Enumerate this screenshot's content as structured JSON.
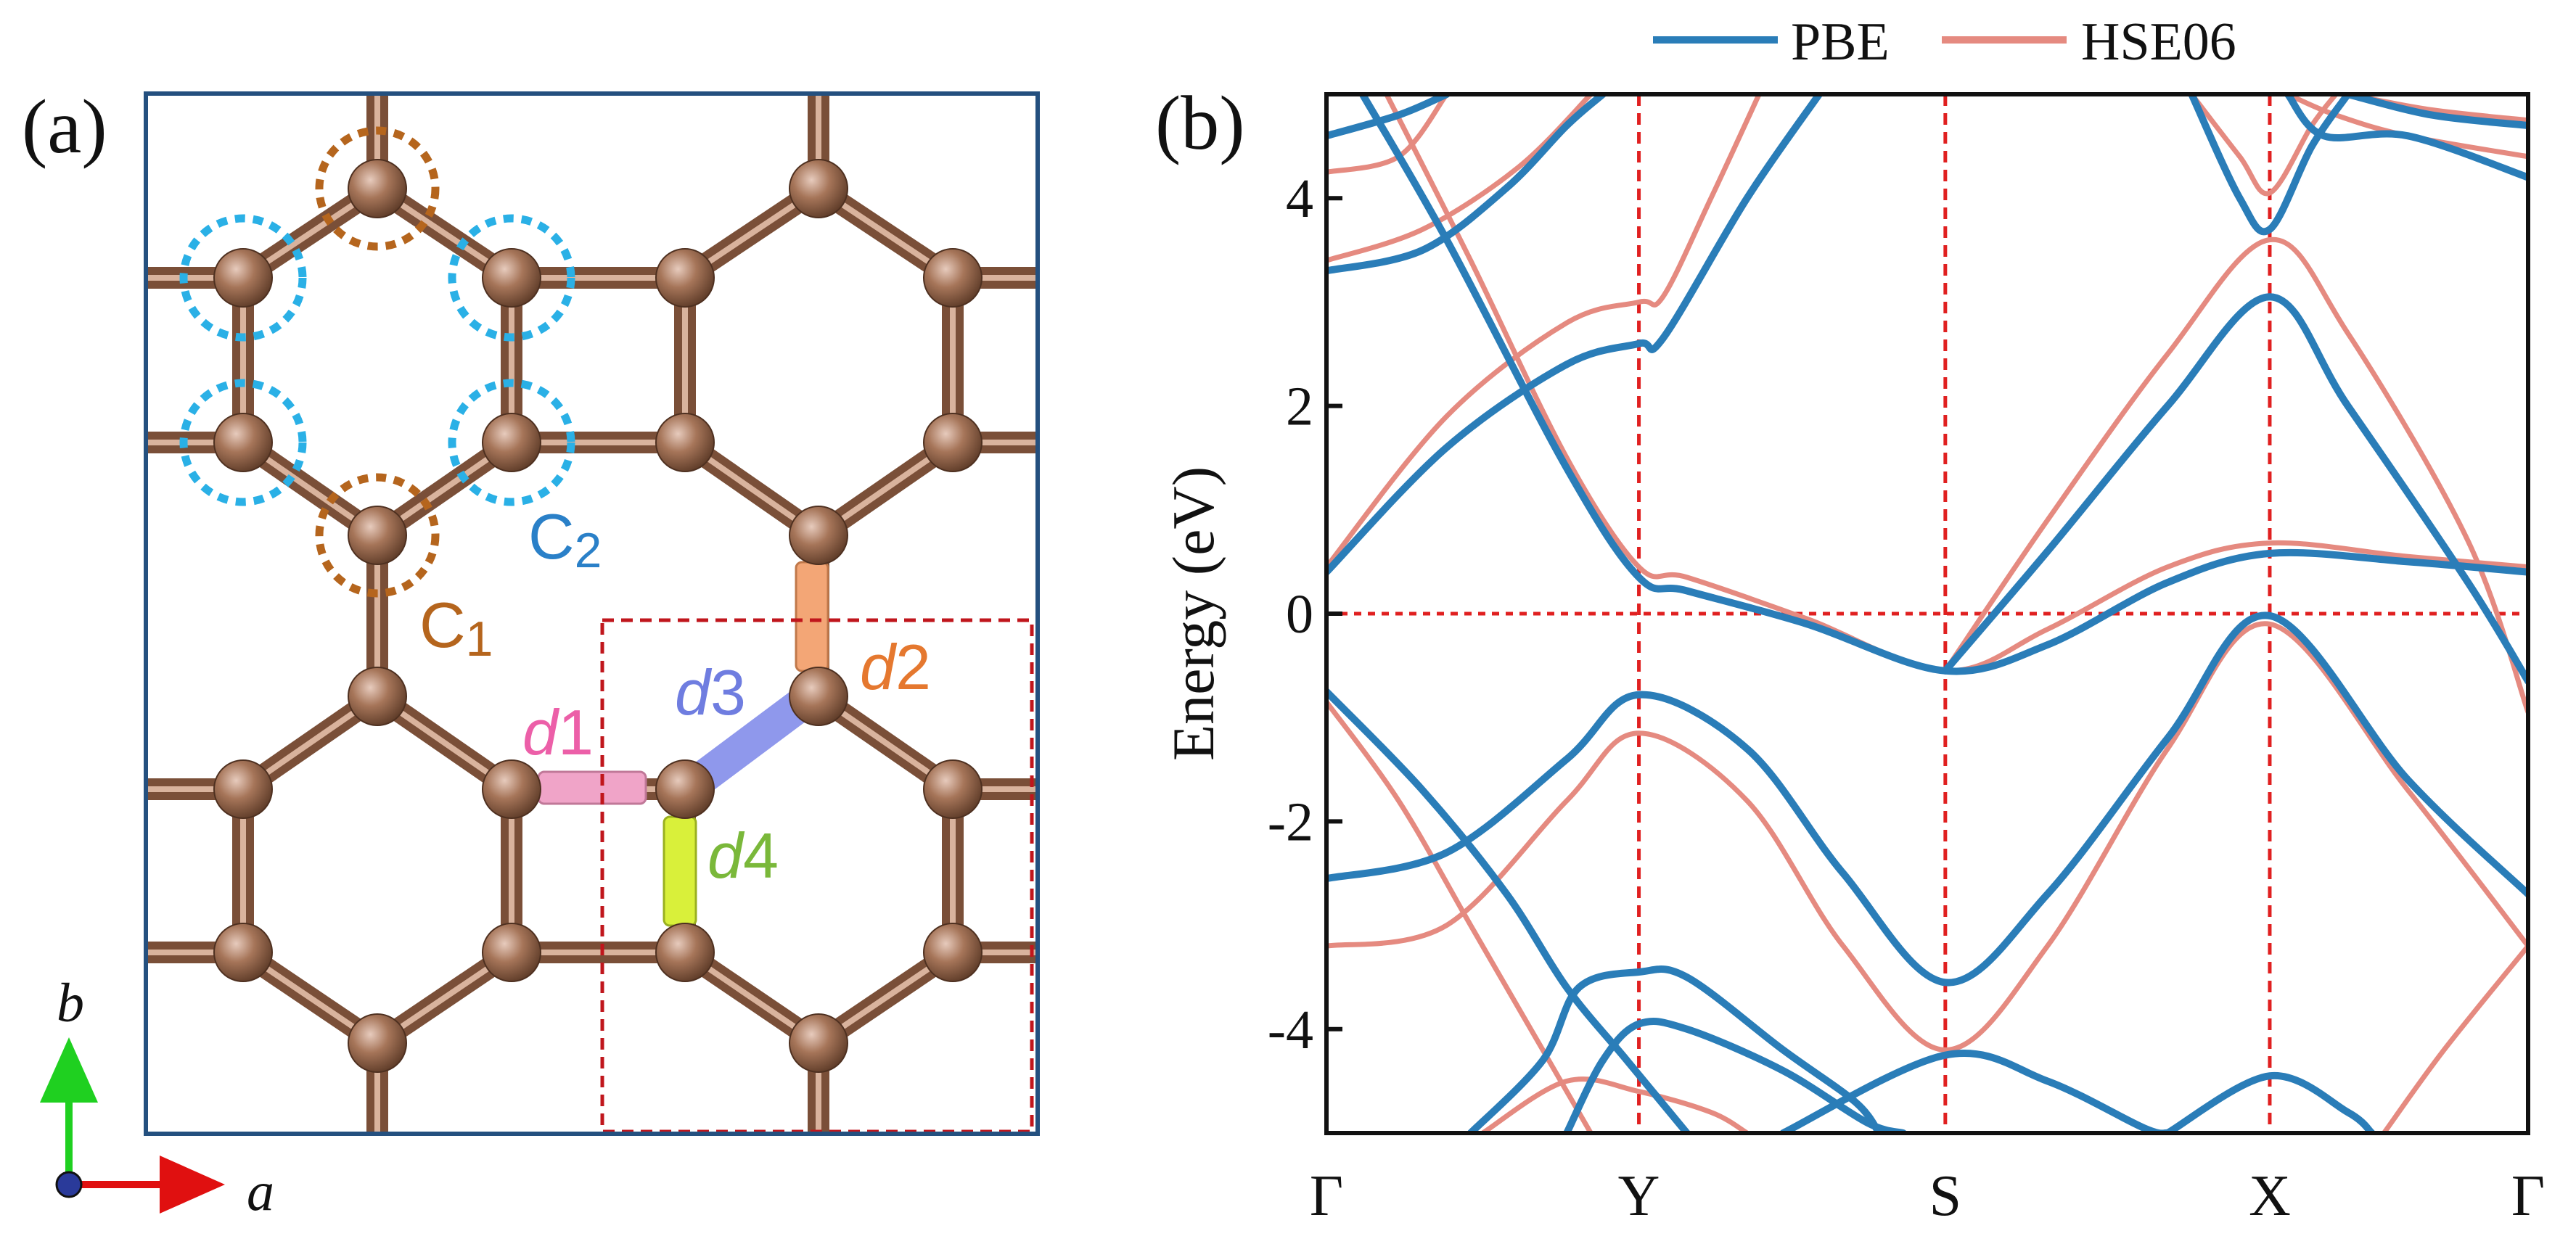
{
  "colors": {
    "pbe": "#2a7db8",
    "hse": "#e58a80",
    "carbon": "#8b5e48",
    "frame": "#24507f",
    "dashed_red": "#e02020",
    "c1_ring": "#b5651d",
    "c2_ring": "#2ab0e6",
    "d1": "#ec5fa8",
    "d2": "#e5782f",
    "d3": "#6f7de0",
    "d4": "#7ab83a",
    "bond_d1": "#f0a4c8",
    "bond_d2": "#f3a676",
    "bond_d3": "#8f98ec",
    "bond_d4": "#d9f03a"
  },
  "panel_a": {
    "label": "(a)",
    "c1": {
      "main": "C",
      "sub": "1"
    },
    "c2": {
      "main": "C",
      "sub": "2"
    },
    "d1": {
      "main": "d",
      "sub": "1"
    },
    "d2": {
      "main": "d",
      "sub": "2"
    },
    "d3": {
      "main": "d",
      "sub": "3"
    },
    "d4": {
      "main": "d",
      "sub": "4"
    },
    "axis_a": "a",
    "axis_b": "b"
  },
  "panel_b": {
    "label": "(b)",
    "legend": [
      "PBE",
      "HSE06"
    ],
    "ylabel": "Energy (eV)",
    "yticks": [
      "4",
      "2",
      "0",
      "-2",
      "-4"
    ],
    "kpoints": [
      "Γ",
      "Y",
      "S",
      "X",
      "Γ"
    ]
  },
  "chart_data": {
    "type": "line",
    "title": "",
    "xlabel": "",
    "ylabel": "Energy (eV)",
    "ylim": [
      -5,
      5
    ],
    "yticks": [
      4,
      2,
      0,
      -2,
      -4
    ],
    "x_kpoints": [
      {
        "label": "Γ",
        "x": 0.0
      },
      {
        "label": "Y",
        "x": 0.26
      },
      {
        "label": "S",
        "x": 0.515
      },
      {
        "label": "X",
        "x": 0.785
      },
      {
        "label": "Γ",
        "x": 1.0
      }
    ],
    "fermi_level": 0,
    "legend": [
      "PBE",
      "HSE06"
    ],
    "series": [
      {
        "name": "PBE",
        "color": "#2a7db8",
        "bands": [
          [
            [
              0,
              0.4
            ],
            [
              0.1,
              1.6
            ],
            [
              0.2,
              2.4
            ],
            [
              0.26,
              2.6
            ],
            [
              0.28,
              2.65
            ],
            [
              0.35,
              4
            ],
            [
              0.41,
              5
            ]
          ],
          [
            [
              0.03,
              5
            ],
            [
              0.1,
              3.6
            ],
            [
              0.2,
              1.4
            ],
            [
              0.26,
              0.35
            ],
            [
              0.3,
              0.22
            ],
            [
              0.4,
              -0.1
            ],
            [
              0.515,
              -0.55
            ],
            [
              0.6,
              -0.3
            ],
            [
              0.7,
              0.3
            ],
            [
              0.785,
              0.58
            ],
            [
              0.9,
              0.5
            ],
            [
              1,
              0.4
            ]
          ],
          [
            [
              0.515,
              -0.55
            ],
            [
              0.6,
              0.6
            ],
            [
              0.7,
              2
            ],
            [
              0.785,
              3.05
            ],
            [
              0.85,
              2
            ],
            [
              0.95,
              0.3
            ],
            [
              1,
              -0.65
            ]
          ],
          [
            [
              0,
              -0.75
            ],
            [
              0.08,
              -1.7
            ],
            [
              0.15,
              -2.7
            ],
            [
              0.2,
              -3.6
            ],
            [
              0.25,
              -4.3
            ],
            [
              0.3,
              -5
            ]
          ],
          [
            [
              0,
              -2.55
            ],
            [
              0.1,
              -2.3
            ],
            [
              0.2,
              -1.4
            ],
            [
              0.26,
              -0.78
            ],
            [
              0.35,
              -1.3
            ],
            [
              0.43,
              -2.5
            ],
            [
              0.515,
              -3.55
            ],
            [
              0.6,
              -2.7
            ],
            [
              0.7,
              -1.2
            ],
            [
              0.785,
              -0.02
            ],
            [
              0.9,
              -1.6
            ],
            [
              1,
              -2.7
            ]
          ],
          [
            [
              0.12,
              -5
            ],
            [
              0.18,
              -4.3
            ],
            [
              0.21,
              -3.6
            ],
            [
              0.26,
              -3.45
            ],
            [
              0.3,
              -3.5
            ],
            [
              0.38,
              -4.2
            ],
            [
              0.44,
              -4.7
            ],
            [
              0.46,
              -5
            ]
          ],
          [
            [
              0.2,
              -5
            ],
            [
              0.23,
              -4.3
            ],
            [
              0.26,
              -3.95
            ],
            [
              0.3,
              -4.0
            ],
            [
              0.38,
              -4.4
            ],
            [
              0.45,
              -4.9
            ],
            [
              0.48,
              -5
            ]
          ],
          [
            [
              0.38,
              -5
            ],
            [
              0.515,
              -4.25
            ],
            [
              0.6,
              -4.5
            ],
            [
              0.68,
              -4.95
            ],
            [
              0.7,
              -5
            ]
          ],
          [
            [
              0.7,
              -5
            ],
            [
              0.785,
              -4.45
            ],
            [
              0.85,
              -4.8
            ],
            [
              0.87,
              -5
            ]
          ],
          [
            [
              0,
              3.3
            ],
            [
              0.08,
              3.5
            ],
            [
              0.15,
              4.1
            ],
            [
              0.2,
              4.7
            ],
            [
              0.23,
              5
            ]
          ],
          [
            [
              0,
              4.6
            ],
            [
              0.06,
              4.8
            ],
            [
              0.1,
              5
            ]
          ],
          [
            [
              0.72,
              5
            ],
            [
              0.76,
              4.0
            ],
            [
              0.785,
              3.7
            ],
            [
              0.82,
              4.5
            ],
            [
              0.85,
              5
            ]
          ],
          [
            [
              0.8,
              5
            ],
            [
              0.83,
              4.6
            ],
            [
              0.9,
              4.6
            ],
            [
              1,
              4.2
            ]
          ],
          [
            [
              0.85,
              5
            ],
            [
              0.92,
              4.8
            ],
            [
              1,
              4.7
            ]
          ]
        ]
      },
      {
        "name": "HSE06",
        "color": "#e58a80",
        "bands": [
          [
            [
              0,
              0.45
            ],
            [
              0.1,
              1.9
            ],
            [
              0.2,
              2.8
            ],
            [
              0.26,
              3.0
            ],
            [
              0.28,
              3.05
            ],
            [
              0.32,
              4
            ],
            [
              0.36,
              5
            ]
          ],
          [
            [
              0.05,
              5
            ],
            [
              0.12,
              3.4
            ],
            [
              0.2,
              1.5
            ],
            [
              0.26,
              0.45
            ],
            [
              0.3,
              0.35
            ],
            [
              0.4,
              -0.05
            ],
            [
              0.515,
              -0.55
            ],
            [
              0.6,
              -0.15
            ],
            [
              0.7,
              0.45
            ],
            [
              0.785,
              0.68
            ],
            [
              0.9,
              0.55
            ],
            [
              1,
              0.45
            ]
          ],
          [
            [
              0.515,
              -0.55
            ],
            [
              0.6,
              0.9
            ],
            [
              0.7,
              2.5
            ],
            [
              0.785,
              3.6
            ],
            [
              0.85,
              2.7
            ],
            [
              0.95,
              0.7
            ],
            [
              1,
              -0.95
            ]
          ],
          [
            [
              0,
              -0.85
            ],
            [
              0.06,
              -1.8
            ],
            [
              0.12,
              -3.0
            ],
            [
              0.18,
              -4.2
            ],
            [
              0.22,
              -5
            ]
          ],
          [
            [
              0,
              -3.2
            ],
            [
              0.1,
              -3.0
            ],
            [
              0.2,
              -1.8
            ],
            [
              0.26,
              -1.15
            ],
            [
              0.35,
              -1.8
            ],
            [
              0.43,
              -3.2
            ],
            [
              0.515,
              -4.2
            ],
            [
              0.6,
              -3.2
            ],
            [
              0.7,
              -1.3
            ],
            [
              0.785,
              -0.1
            ],
            [
              0.9,
              -1.7
            ],
            [
              1,
              -3.2
            ]
          ],
          [
            [
              0.13,
              -5
            ],
            [
              0.2,
              -4.5
            ],
            [
              0.26,
              -4.6
            ],
            [
              0.32,
              -4.8
            ],
            [
              0.35,
              -5
            ]
          ],
          [
            [
              0,
              4.25
            ],
            [
              0.06,
              4.4
            ],
            [
              0.1,
              5
            ]
          ],
          [
            [
              0,
              3.4
            ],
            [
              0.08,
              3.7
            ],
            [
              0.16,
              4.3
            ],
            [
              0.22,
              5
            ]
          ],
          [
            [
              0.72,
              5
            ],
            [
              0.76,
              4.4
            ],
            [
              0.785,
              4.05
            ],
            [
              0.82,
              4.7
            ],
            [
              0.84,
              5
            ]
          ],
          [
            [
              0.8,
              5
            ],
            [
              0.84,
              4.8
            ],
            [
              0.9,
              4.6
            ],
            [
              1,
              4.4
            ]
          ],
          [
            [
              0.85,
              5
            ],
            [
              0.92,
              4.85
            ],
            [
              1,
              4.75
            ]
          ],
          [
            [
              0.88,
              -5
            ],
            [
              0.93,
              -4.2
            ],
            [
              1,
              -3.2
            ]
          ]
        ]
      }
    ]
  }
}
